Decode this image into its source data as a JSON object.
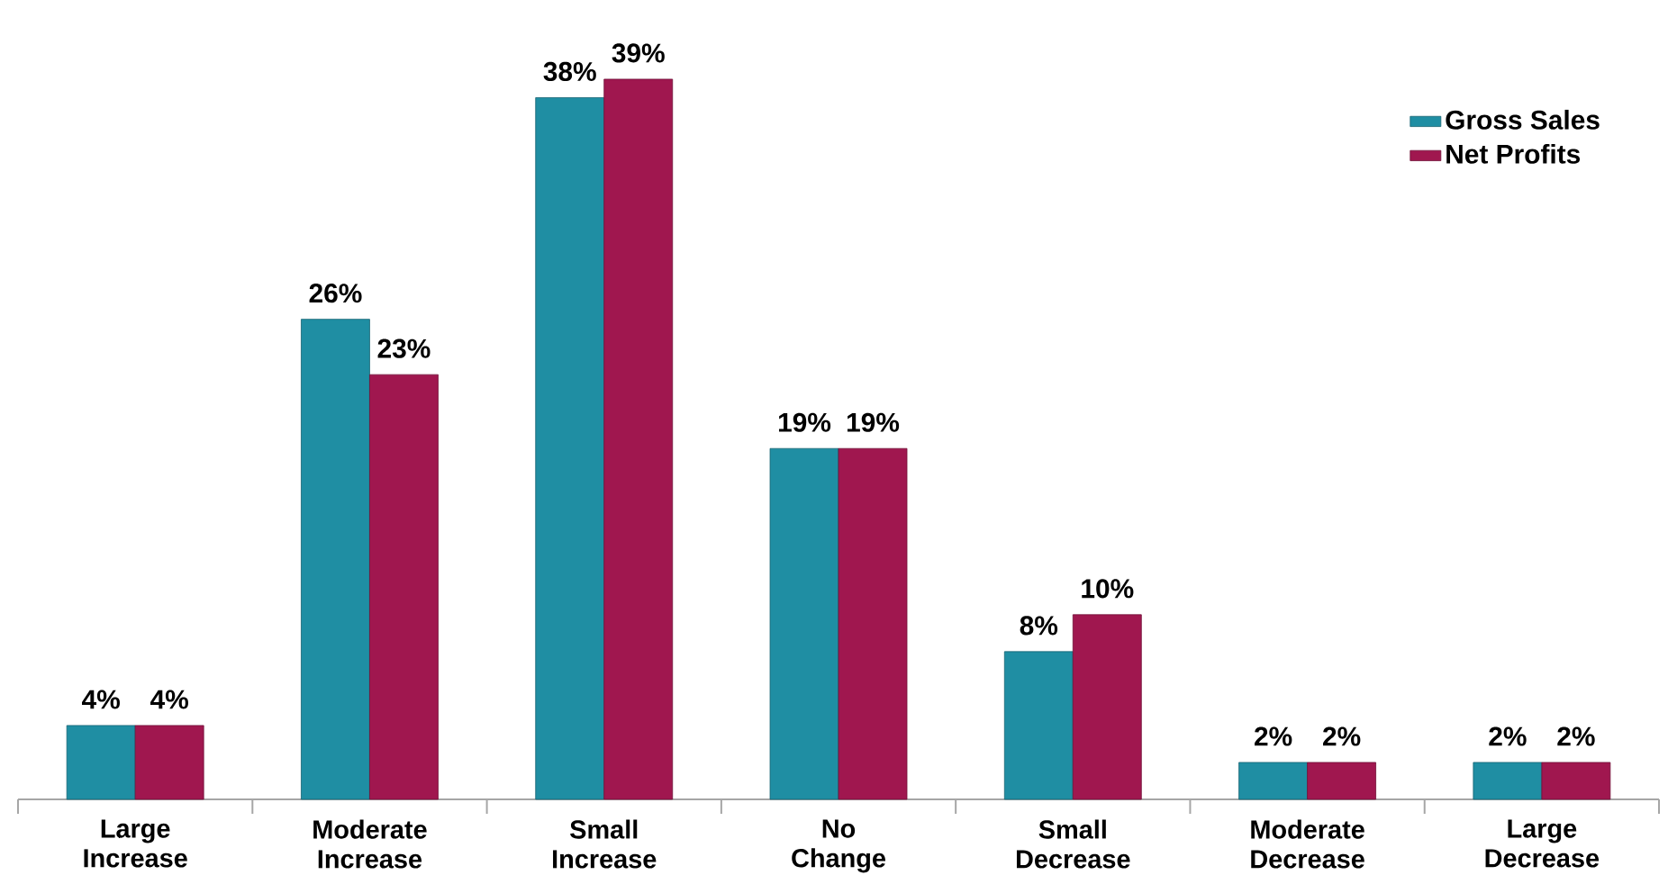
{
  "chart_data": {
    "type": "bar",
    "categories": [
      "Large Increase",
      "Moderate Increase",
      "Small Increase",
      "No Change",
      "Small Decrease",
      "Moderate Decrease",
      "Large Decrease"
    ],
    "series": [
      {
        "name": "Gross Sales",
        "color": "#1f8ea3",
        "values": [
          4,
          26,
          38,
          19,
          8,
          2,
          2
        ],
        "value_labels": [
          "4%",
          "26%",
          "38%",
          "19%",
          "8%",
          "2%",
          "2%"
        ]
      },
      {
        "name": "Net Profits",
        "color": "#a0174f",
        "values": [
          4,
          23,
          39,
          19,
          10,
          2,
          2
        ],
        "value_labels": [
          "4%",
          "23%",
          "39%",
          "19%",
          "10%",
          "2%",
          "2%"
        ]
      }
    ],
    "legend": "top right",
    "grid": false
  }
}
